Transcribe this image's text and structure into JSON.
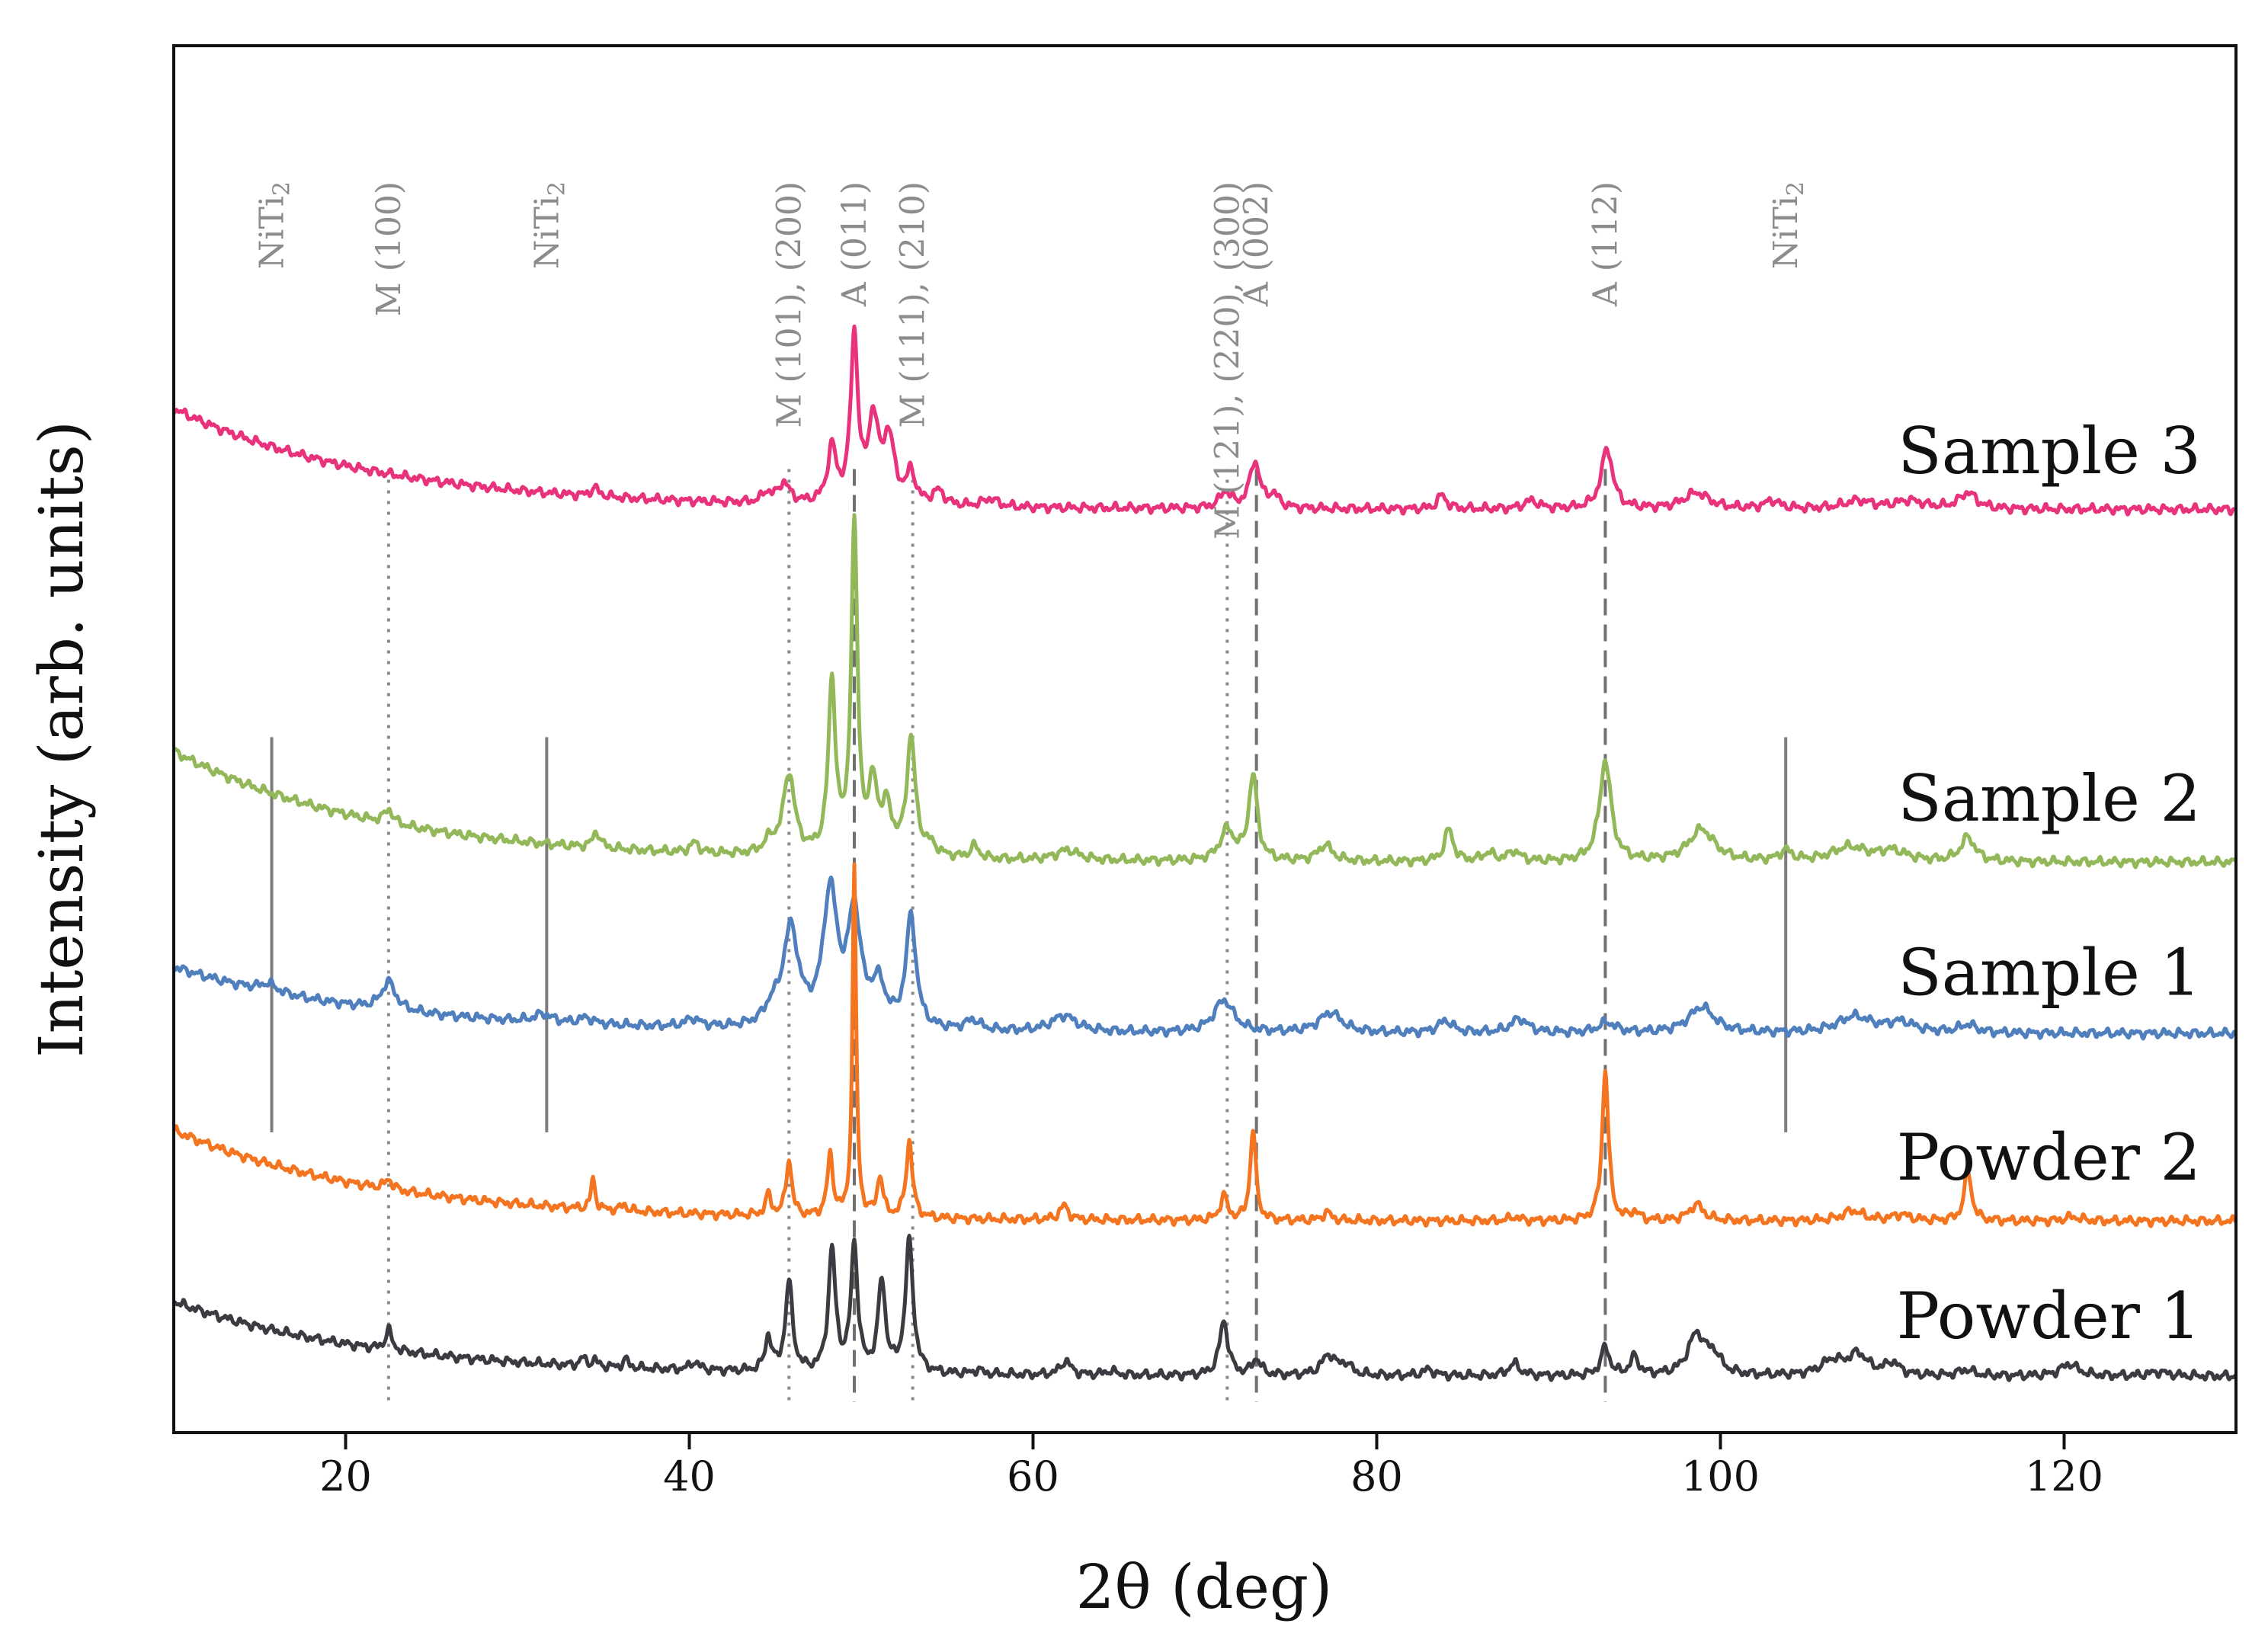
{
  "chart_data": {
    "type": "line",
    "title": "",
    "xlabel": "2θ (deg)",
    "ylabel": "Intensity (arb. units)",
    "xlim": [
      10,
      130
    ],
    "x_ticks": [
      20,
      40,
      60,
      80,
      100,
      120
    ],
    "y_ticks": [],
    "grid": false,
    "legend": "inline labels at right end of each curve",
    "series_order_top_to_bottom": [
      "Sample 3",
      "Sample 2",
      "Sample 1",
      "Powder 2",
      "Powder 1"
    ],
    "series": [
      {
        "name": "Sample 3",
        "color": "#e8327c",
        "offset": 4.25,
        "baseline": {
          "start": 0.55,
          "end": 0.05,
          "decay": 12
        },
        "peaks": [
          [
            34.5,
            0.04,
            0.3
          ],
          [
            44.5,
            0.05,
            0.3
          ],
          [
            45.5,
            0.1,
            0.4
          ],
          [
            48.3,
            0.27,
            0.3
          ],
          [
            49.6,
            0.82,
            0.25
          ],
          [
            50.7,
            0.4,
            0.35
          ],
          [
            51.6,
            0.32,
            0.4
          ],
          [
            52.9,
            0.15,
            0.3
          ],
          [
            54.5,
            0.07,
            0.4
          ],
          [
            57.5,
            0.04,
            0.5
          ],
          [
            71.2,
            0.08,
            0.4
          ],
          [
            72.9,
            0.23,
            0.35
          ],
          [
            74.0,
            0.06,
            0.4
          ],
          [
            83.8,
            0.07,
            0.3
          ],
          [
            89.0,
            0.04,
            0.5
          ],
          [
            93.4,
            0.3,
            0.4
          ],
          [
            98.6,
            0.08,
            0.9
          ],
          [
            103.0,
            0.04,
            0.5
          ],
          [
            108.0,
            0.04,
            1.0
          ],
          [
            111.0,
            0.04,
            1.0
          ],
          [
            114.4,
            0.08,
            0.6
          ]
        ]
      },
      {
        "name": "Sample 2",
        "color": "#93b85a",
        "offset": 2.55,
        "baseline": {
          "start": 0.55,
          "end": 0.0,
          "decay": 12
        },
        "peaks": [
          [
            22.5,
            0.07,
            0.3
          ],
          [
            34.6,
            0.08,
            0.25
          ],
          [
            40.3,
            0.05,
            0.3
          ],
          [
            44.7,
            0.06,
            0.4
          ],
          [
            45.8,
            0.4,
            0.4
          ],
          [
            48.3,
            0.85,
            0.25
          ],
          [
            49.6,
            1.62,
            0.22
          ],
          [
            50.7,
            0.33,
            0.3
          ],
          [
            51.5,
            0.22,
            0.35
          ],
          [
            52.9,
            0.58,
            0.3
          ],
          [
            54.0,
            0.05,
            0.5
          ],
          [
            56.6,
            0.06,
            0.3
          ],
          [
            62.0,
            0.05,
            0.8
          ],
          [
            71.3,
            0.15,
            0.5
          ],
          [
            72.8,
            0.42,
            0.3
          ],
          [
            77.0,
            0.08,
            0.5
          ],
          [
            84.2,
            0.16,
            0.3
          ],
          [
            86.5,
            0.04,
            0.4
          ],
          [
            88.0,
            0.05,
            0.4
          ],
          [
            93.3,
            0.5,
            0.4
          ],
          [
            98.9,
            0.16,
            0.9
          ],
          [
            103.8,
            0.05,
            0.4
          ],
          [
            107.5,
            0.07,
            1.2
          ],
          [
            110.0,
            0.05,
            1.0
          ],
          [
            114.4,
            0.12,
            0.5
          ]
        ]
      },
      {
        "name": "Sample 1",
        "color": "#4f7fbd",
        "offset": 1.7,
        "baseline": {
          "start": 0.33,
          "end": 0.0,
          "decay": 12
        },
        "peaks": [
          [
            15.5,
            0.04,
            0.6
          ],
          [
            22.5,
            0.14,
            0.5
          ],
          [
            31.5,
            0.04,
            0.6
          ],
          [
            34.0,
            0.03,
            0.5
          ],
          [
            40.2,
            0.04,
            0.5
          ],
          [
            44.8,
            0.07,
            0.5
          ],
          [
            45.9,
            0.48,
            0.55
          ],
          [
            48.2,
            0.66,
            0.5
          ],
          [
            49.6,
            0.55,
            0.45
          ],
          [
            51.0,
            0.2,
            0.5
          ],
          [
            52.9,
            0.55,
            0.35
          ],
          [
            56.5,
            0.05,
            0.5
          ],
          [
            61.8,
            0.08,
            0.9
          ],
          [
            71.1,
            0.16,
            0.7
          ],
          [
            77.3,
            0.1,
            0.8
          ],
          [
            84.0,
            0.06,
            0.5
          ],
          [
            88.3,
            0.07,
            0.6
          ],
          [
            93.4,
            0.05,
            0.6
          ],
          [
            98.9,
            0.13,
            0.9
          ],
          [
            107.8,
            0.08,
            1.2
          ],
          [
            110.5,
            0.05,
            1.0
          ],
          [
            114.4,
            0.04,
            0.6
          ]
        ]
      },
      {
        "name": "Powder 2",
        "color": "#f47420",
        "offset": 0.77,
        "baseline": {
          "start": 0.45,
          "end": 0.0,
          "decay": 12
        },
        "peaks": [
          [
            22.5,
            0.05,
            0.25
          ],
          [
            34.4,
            0.15,
            0.15
          ],
          [
            36.2,
            0.03,
            0.2
          ],
          [
            44.6,
            0.1,
            0.2
          ],
          [
            45.8,
            0.28,
            0.2
          ],
          [
            48.2,
            0.3,
            0.2
          ],
          [
            49.6,
            1.72,
            0.13
          ],
          [
            51.1,
            0.2,
            0.2
          ],
          [
            52.8,
            0.38,
            0.22
          ],
          [
            61.8,
            0.07,
            0.3
          ],
          [
            71.1,
            0.12,
            0.25
          ],
          [
            72.8,
            0.45,
            0.2
          ],
          [
            77.1,
            0.04,
            0.3
          ],
          [
            88.0,
            0.02,
            0.3
          ],
          [
            93.3,
            0.75,
            0.22
          ],
          [
            95.0,
            0.04,
            0.3
          ],
          [
            98.6,
            0.08,
            0.5
          ],
          [
            107.7,
            0.05,
            0.7
          ],
          [
            110.5,
            0.03,
            0.6
          ],
          [
            114.4,
            0.25,
            0.25
          ],
          [
            120.5,
            0.02,
            0.5
          ]
        ]
      },
      {
        "name": "Powder 1",
        "color": "#3b3b42",
        "offset": 0.0,
        "baseline": {
          "start": 0.37,
          "end": 0.0,
          "decay": 12
        },
        "peaks": [
          [
            22.5,
            0.1,
            0.22
          ],
          [
            33.8,
            0.04,
            0.2
          ],
          [
            34.5,
            0.03,
            0.2
          ],
          [
            36.3,
            0.04,
            0.2
          ],
          [
            40.3,
            0.04,
            0.3
          ],
          [
            44.6,
            0.17,
            0.22
          ],
          [
            45.8,
            0.44,
            0.25
          ],
          [
            48.3,
            0.6,
            0.25
          ],
          [
            49.6,
            0.63,
            0.23
          ],
          [
            51.2,
            0.45,
            0.25
          ],
          [
            52.8,
            0.65,
            0.27
          ],
          [
            56.8,
            0.02,
            0.3
          ],
          [
            61.9,
            0.07,
            0.35
          ],
          [
            64.5,
            0.02,
            0.4
          ],
          [
            71.1,
            0.27,
            0.3
          ],
          [
            73.0,
            0.08,
            0.3
          ],
          [
            77.2,
            0.1,
            0.5
          ],
          [
            78.2,
            0.05,
            0.4
          ],
          [
            83.0,
            0.03,
            0.4
          ],
          [
            88.0,
            0.06,
            0.4
          ],
          [
            93.3,
            0.14,
            0.3
          ],
          [
            95.0,
            0.09,
            0.3
          ],
          [
            98.6,
            0.2,
            0.6
          ],
          [
            99.6,
            0.09,
            0.5
          ],
          [
            106.5,
            0.07,
            0.8
          ],
          [
            108.0,
            0.1,
            0.7
          ],
          [
            110.0,
            0.06,
            0.5
          ],
          [
            114.3,
            0.03,
            0.5
          ],
          [
            120.3,
            0.06,
            0.6
          ],
          [
            125.5,
            0.02,
            0.7
          ]
        ]
      }
    ],
    "reference_lines": [
      {
        "x": 22.5,
        "style": "dotted",
        "label": "M (100)"
      },
      {
        "x": 45.8,
        "style": "dotted",
        "label": "M (101), (200)"
      },
      {
        "x": 49.6,
        "style": "dashed",
        "label": "A (011)"
      },
      {
        "x": 53.0,
        "style": "dotted",
        "label": "M (111), (210)"
      },
      {
        "x": 71.3,
        "style": "dotted",
        "label": "M (121), (220), (300)"
      },
      {
        "x": 73.0,
        "style": "dashed",
        "label": "A (002)"
      },
      {
        "x": 93.3,
        "style": "dashed",
        "label": "A (112)"
      }
    ],
    "phase_markers": [
      {
        "x": 15.7,
        "label": "NiTi",
        "subscript": "2"
      },
      {
        "x": 31.7,
        "label": "NiTi",
        "subscript": "2"
      },
      {
        "x": 103.8,
        "label": "NiTi",
        "subscript": "2"
      }
    ]
  }
}
